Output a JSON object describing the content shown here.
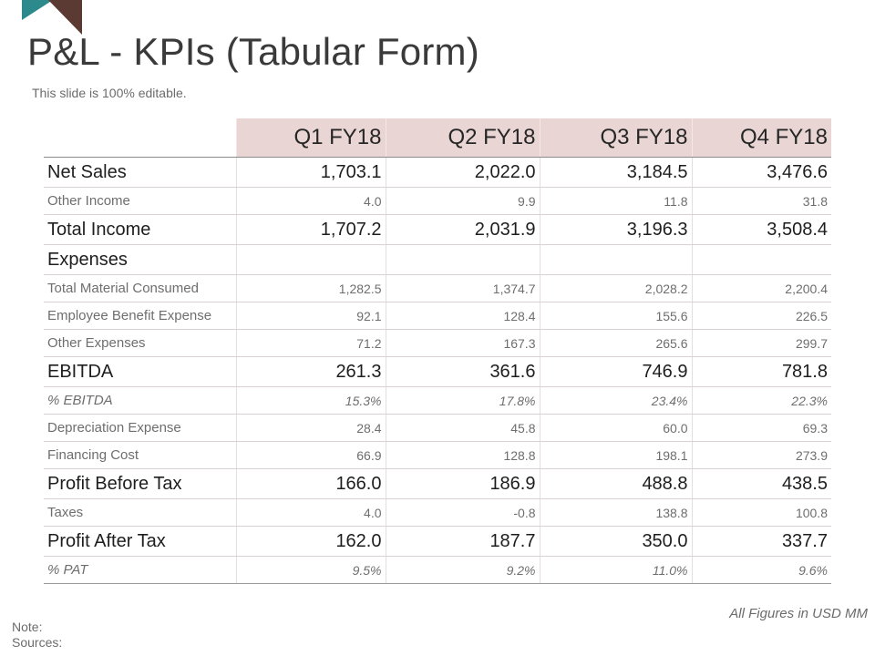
{
  "slide": {
    "title": "P&L - KPIs (Tabular Form)",
    "subtitle": "This slide is 100% editable.",
    "accent_colors": {
      "teal": "#2c8a8d",
      "brown": "#5a3a33",
      "header_fill": "#e9d6d4"
    }
  },
  "table": {
    "headers": [
      "",
      "Q1 FY18",
      "Q2 FY18",
      "Q3 FY18",
      "Q4 FY18"
    ],
    "rows": [
      {
        "label": "Net Sales",
        "values": [
          "1,703.1",
          "2,022.0",
          "3,184.5",
          "3,476.6"
        ]
      },
      {
        "label": "Other Income",
        "values": [
          "4.0",
          "9.9",
          "11.8",
          "31.8"
        ]
      },
      {
        "label": "Total Income",
        "values": [
          "1,707.2",
          "2,031.9",
          "3,196.3",
          "3,508.4"
        ]
      },
      {
        "label": "Expenses",
        "values": [
          "",
          "",
          "",
          ""
        ]
      },
      {
        "label": "Total Material Consumed",
        "values": [
          "1,282.5",
          "1,374.7",
          "2,028.2",
          "2,200.4"
        ]
      },
      {
        "label": "Employee Benefit Expense",
        "values": [
          "92.1",
          "128.4",
          "155.6",
          "226.5"
        ]
      },
      {
        "label": "Other Expenses",
        "values": [
          "71.2",
          "167.3",
          "265.6",
          "299.7"
        ]
      },
      {
        "label": "EBITDA",
        "values": [
          "261.3",
          "361.6",
          "746.9",
          "781.8"
        ]
      },
      {
        "label": "% EBITDA",
        "values": [
          "15.3%",
          "17.8%",
          "23.4%",
          "22.3%"
        ]
      },
      {
        "label": "Depreciation Expense",
        "values": [
          "28.4",
          "45.8",
          "60.0",
          "69.3"
        ]
      },
      {
        "label": "Financing Cost",
        "values": [
          "66.9",
          "128.8",
          "198.1",
          "273.9"
        ]
      },
      {
        "label": "Profit Before Tax",
        "values": [
          "166.0",
          "186.9",
          "488.8",
          "438.5"
        ]
      },
      {
        "label": "Taxes",
        "values": [
          "4.0",
          "-0.8",
          "138.8",
          "100.8"
        ]
      },
      {
        "label": "Profit After Tax",
        "values": [
          "162.0",
          "187.7",
          "350.0",
          "337.7"
        ]
      },
      {
        "label": "% PAT",
        "values": [
          "9.5%",
          "9.2%",
          "11.0%",
          "9.6%"
        ]
      }
    ]
  },
  "footer": {
    "units": "All Figures in USD MM",
    "note_label": "Note:",
    "sources_label": "Sources:"
  }
}
